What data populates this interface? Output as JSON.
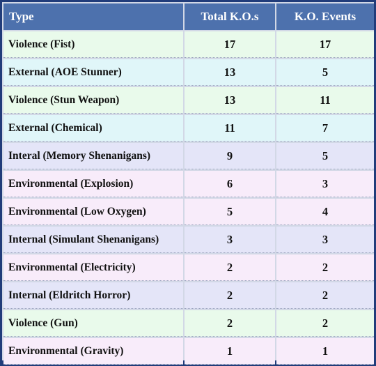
{
  "table": {
    "headers": [
      "Type",
      "Total K.O.s",
      "K.O. Events"
    ],
    "rows": [
      {
        "type": "Violence (Fist)",
        "total": "17",
        "events": "17",
        "category": "violence"
      },
      {
        "type": "External (AOE Stunner)",
        "total": "13",
        "events": "5",
        "category": "external"
      },
      {
        "type": "Violence (Stun Weapon)",
        "total": "13",
        "events": "11",
        "category": "violence"
      },
      {
        "type": "External (Chemical)",
        "total": "11",
        "events": "7",
        "category": "external"
      },
      {
        "type": "Interal (Memory Shenanigans)",
        "total": "9",
        "events": "5",
        "category": "internal"
      },
      {
        "type": "Environmental (Explosion)",
        "total": "6",
        "events": "3",
        "category": "environmental"
      },
      {
        "type": "Environmental (Low Oxygen)",
        "total": "5",
        "events": "4",
        "category": "environmental"
      },
      {
        "type": "Internal (Simulant Shenanigans)",
        "total": "3",
        "events": "3",
        "category": "internal"
      },
      {
        "type": "Environmental (Electricity)",
        "total": "2",
        "events": "2",
        "category": "environmental"
      },
      {
        "type": "Internal (Eldritch Horror)",
        "total": "2",
        "events": "2",
        "category": "internal"
      },
      {
        "type": "Violence (Gun)",
        "total": "2",
        "events": "2",
        "category": "violence"
      },
      {
        "type": "Environmental (Gravity)",
        "total": "1",
        "events": "1",
        "category": "environmental"
      }
    ]
  },
  "colors": {
    "header_bg": "#4d71ad",
    "border": "#213c7a",
    "violence": "#e9faeb",
    "external": "#e0f6f9",
    "internal": "#e4e5f8",
    "environmental": "#f8ecfa"
  }
}
